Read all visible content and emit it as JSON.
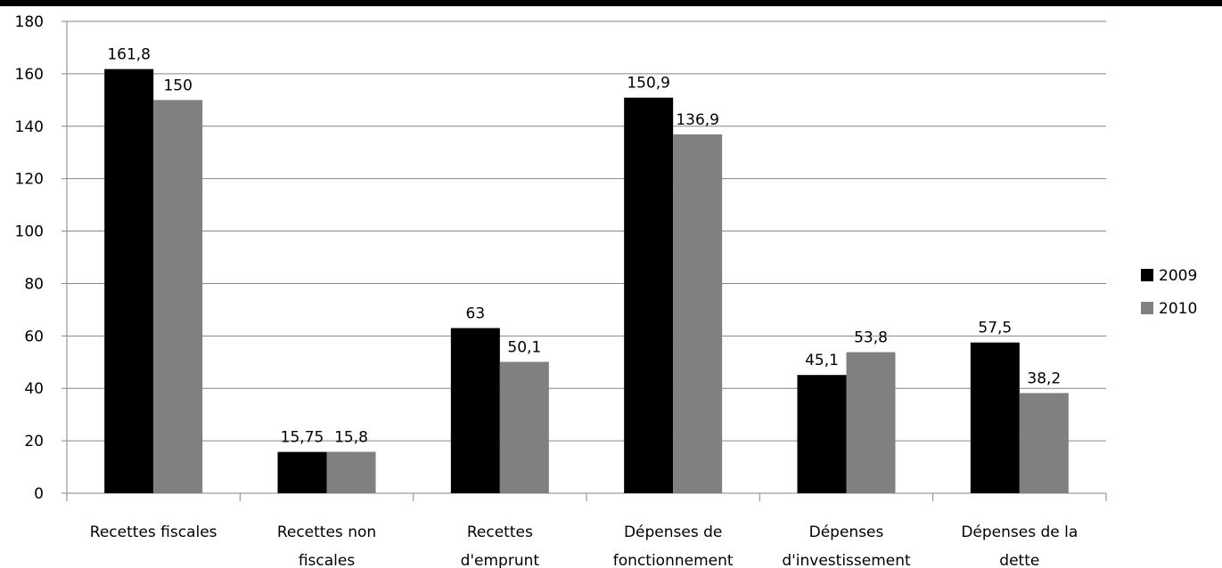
{
  "chart_data": {
    "type": "bar",
    "categories": [
      "Recettes fiscales",
      "Recettes non fiscales",
      "Recettes d'emprunt",
      "Dépenses de fonctionnement",
      "Dépenses d'investissement",
      "Dépenses de la dette"
    ],
    "category_lines": [
      [
        "Recettes fiscales"
      ],
      [
        "Recettes non",
        "fiscales"
      ],
      [
        "Recettes",
        "d'emprunt"
      ],
      [
        "Dépenses de",
        "fonctionnement"
      ],
      [
        "Dépenses",
        "d'investissement"
      ],
      [
        "Dépenses de la",
        "dette"
      ]
    ],
    "series": [
      {
        "name": "2009",
        "values": [
          161.8,
          15.75,
          63,
          150.9,
          45.1,
          57.5
        ],
        "labels": [
          "161,8",
          "15,75",
          "63",
          "150,9",
          "45,1",
          "57,5"
        ],
        "color": "#000000"
      },
      {
        "name": "2010",
        "values": [
          150,
          15.8,
          50.1,
          136.9,
          53.8,
          38.2
        ],
        "labels": [
          "150",
          "15,8",
          "50,1",
          "136,9",
          "53,8",
          "38,2"
        ],
        "color": "#808080"
      }
    ],
    "ylim": [
      0,
      180
    ],
    "yticks": [
      "0",
      "20",
      "40",
      "60",
      "80",
      "100",
      "120",
      "140",
      "160",
      "180"
    ],
    "grid": true,
    "legend": "right",
    "title": "",
    "xlabel": "",
    "ylabel": ""
  }
}
